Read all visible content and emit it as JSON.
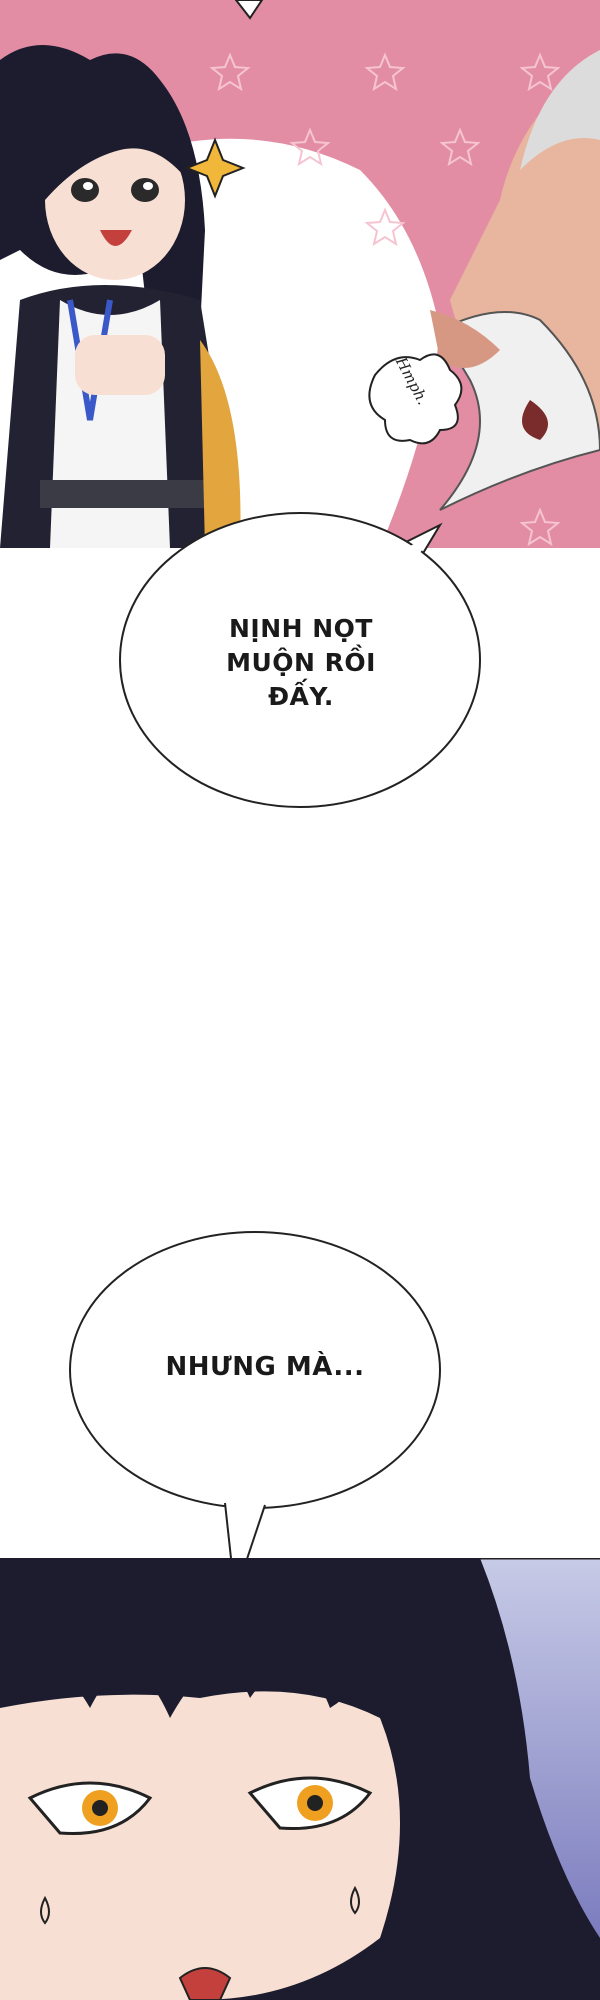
{
  "panels": [
    {
      "name": "top-panel",
      "colors": {
        "background": "#e28da4",
        "star": "#f6c4d1"
      }
    },
    {
      "name": "bottom-panel",
      "colors": {
        "background": "#7c7fbf",
        "hair": "#1c1c2e"
      }
    }
  ],
  "sfx": {
    "text": "Hmph."
  },
  "bubbles": [
    {
      "lines": [
        "NỊNH NỌT",
        "MUỘN RỒI",
        "ĐẤY."
      ]
    },
    {
      "lines": [
        "NHƯNG MÀ..."
      ]
    }
  ]
}
